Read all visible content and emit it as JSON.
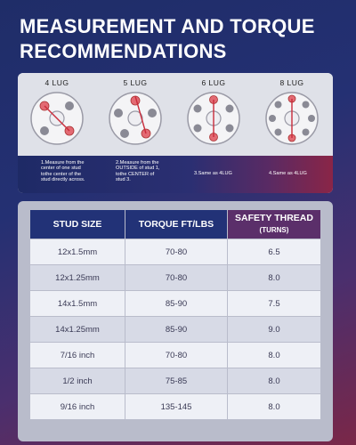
{
  "title": {
    "line1": "MEASUREMENT AND TORQUE",
    "line2": "RECOMMENDATIONS"
  },
  "lugs": [
    {
      "name": "4 LUG",
      "step": [
        "1.Measure from the",
        "center of one stud",
        "tothe center of the",
        "stud directly across."
      ]
    },
    {
      "name": "5 LUG",
      "step": [
        "2.Measure from the",
        "OUTSIDE of stud 1,",
        "tothe CENTER of",
        "stud 3."
      ]
    },
    {
      "name": "6 LUG",
      "step": [
        "3.Same as 4LUG"
      ]
    },
    {
      "name": "8 LUG",
      "step": [
        "4.Same as 4LUG"
      ]
    }
  ],
  "table": {
    "headers": {
      "stud_size": "STUD SIZE",
      "torque": "TORQUE FT/LBS",
      "safety": "SAFETY THREAD",
      "safety_sub": "(TURNS)"
    },
    "rows": [
      {
        "size": "12x1.5mm",
        "torque": "70-80",
        "turns": "6.5"
      },
      {
        "size": "12x1.25mm",
        "torque": "70-80",
        "turns": "8.0"
      },
      {
        "size": "14x1.5mm",
        "torque": "85-90",
        "turns": "7.5"
      },
      {
        "size": "14x1.25mm",
        "torque": "85-90",
        "turns": "9.0"
      },
      {
        "size": "7/16 inch",
        "torque": "70-80",
        "turns": "8.0"
      },
      {
        "size": "1/2 inch",
        "torque": "75-85",
        "turns": "8.0"
      },
      {
        "size": "9/16 inch",
        "torque": "135-145",
        "turns": "8.0"
      }
    ]
  },
  "colors": {
    "accent_red": "#d2424f",
    "header_blue": "#223277",
    "header_purple": "#5b2f6a"
  }
}
